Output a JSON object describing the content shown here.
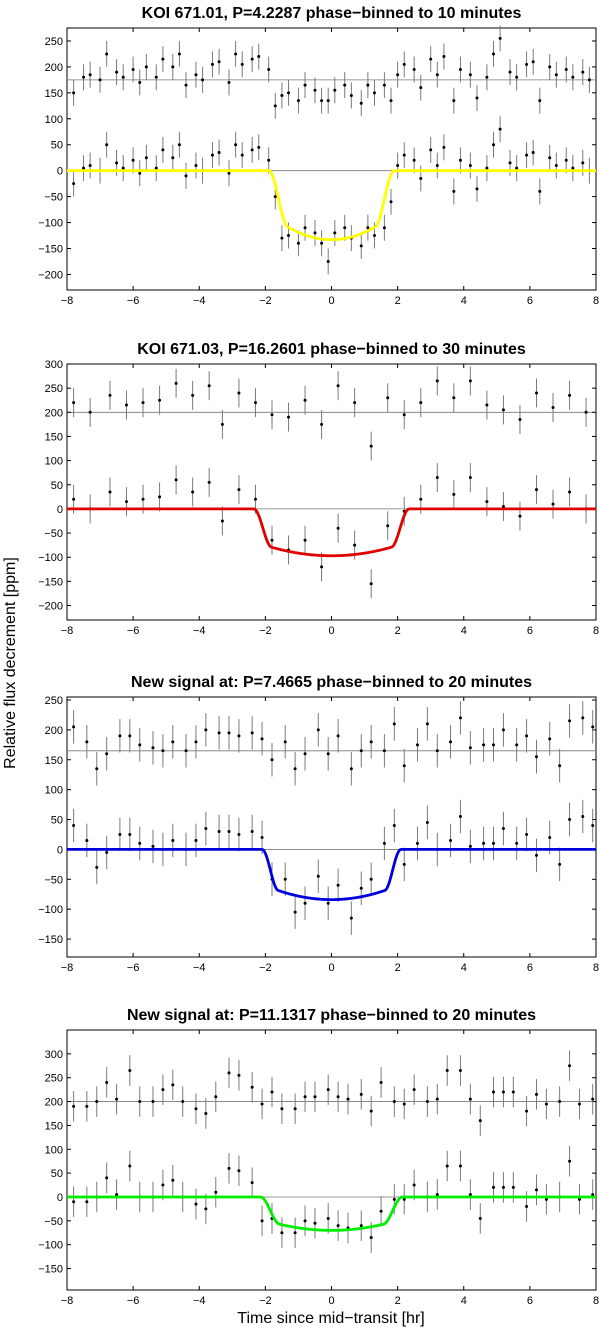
{
  "figure": {
    "ylabel": "Relative flux decrement [ppm]",
    "xlabel": "Time since mid−transit [hr]"
  },
  "chart_data": [
    {
      "type": "scatter",
      "title": "KOI 671.01, P=4.2287 phase−binned to 10 minutes",
      "xlim": [
        -8,
        8
      ],
      "ylim": [
        -230,
        275
      ],
      "xticks": [
        -8,
        -6,
        -4,
        -2,
        0,
        2,
        4,
        6,
        8
      ],
      "yticks": [
        -200,
        -150,
        -100,
        -50,
        0,
        50,
        100,
        150,
        200,
        250
      ],
      "model_color": "#ffff00",
      "baseline_offset": 175,
      "transit": {
        "depth": 133,
        "t_ingress_start": 1.9,
        "t_ingress_end": 1.3
      },
      "series": [
        {
          "role": "data",
          "x": [
            -7.8,
            -7.5,
            -7.3,
            -7.0,
            -6.8,
            -6.5,
            -6.3,
            -6.0,
            -5.8,
            -5.6,
            -5.3,
            -5.1,
            -4.8,
            -4.6,
            -4.4,
            -4.1,
            -3.9,
            -3.6,
            -3.4,
            -3.1,
            -2.9,
            -2.7,
            -2.4,
            -2.2,
            -1.9,
            -1.7,
            -1.5,
            -1.3,
            -1.0,
            -0.8,
            -0.5,
            -0.3,
            -0.1,
            0.1,
            0.4,
            0.6,
            0.9,
            1.1,
            1.3,
            1.6,
            1.8,
            2.0,
            2.2,
            2.5,
            2.7,
            3.0,
            3.2,
            3.4,
            3.7,
            3.9,
            4.2,
            4.4,
            4.7,
            4.9,
            5.1,
            5.4,
            5.6,
            5.9,
            6.1,
            6.3,
            6.6,
            6.8,
            7.1,
            7.3,
            7.6,
            7.8
          ],
          "y": [
            -25,
            5,
            10,
            0,
            50,
            15,
            5,
            20,
            -5,
            25,
            5,
            40,
            25,
            50,
            -10,
            10,
            0,
            30,
            35,
            -5,
            50,
            30,
            40,
            45,
            20,
            -50,
            -130,
            -125,
            -140,
            -110,
            -120,
            -140,
            -175,
            -120,
            -110,
            -130,
            -145,
            -110,
            -125,
            -110,
            -60,
            10,
            30,
            20,
            -15,
            40,
            10,
            45,
            -40,
            20,
            10,
            -35,
            5,
            50,
            80,
            15,
            5,
            30,
            35,
            -40,
            25,
            10,
            20,
            5,
            15,
            0
          ],
          "err": 25
        },
        {
          "role": "residual",
          "x": [
            -7.8,
            -7.5,
            -7.3,
            -7.0,
            -6.8,
            -6.5,
            -6.3,
            -6.0,
            -5.8,
            -5.6,
            -5.3,
            -5.1,
            -4.8,
            -4.6,
            -4.4,
            -4.1,
            -3.9,
            -3.6,
            -3.4,
            -3.1,
            -2.9,
            -2.7,
            -2.4,
            -2.2,
            -1.9,
            -1.7,
            -1.5,
            -1.3,
            -1.0,
            -0.8,
            -0.5,
            -0.3,
            -0.1,
            0.1,
            0.4,
            0.6,
            0.9,
            1.1,
            1.3,
            1.6,
            1.8,
            2.0,
            2.2,
            2.5,
            2.7,
            3.0,
            3.2,
            3.4,
            3.7,
            3.9,
            4.2,
            4.4,
            4.7,
            4.9,
            5.1,
            5.4,
            5.6,
            5.9,
            6.1,
            6.3,
            6.6,
            6.8,
            7.1,
            7.3,
            7.6,
            7.8
          ],
          "y": [
            150,
            180,
            185,
            175,
            225,
            190,
            180,
            195,
            170,
            200,
            180,
            215,
            200,
            225,
            165,
            185,
            175,
            205,
            210,
            170,
            225,
            205,
            215,
            220,
            195,
            125,
            145,
            150,
            135,
            165,
            155,
            135,
            135,
            155,
            165,
            145,
            130,
            165,
            150,
            165,
            135,
            185,
            205,
            195,
            160,
            215,
            185,
            220,
            135,
            195,
            185,
            140,
            180,
            225,
            255,
            190,
            180,
            205,
            210,
            135,
            200,
            185,
            195,
            180,
            190,
            175
          ],
          "err": 25
        }
      ]
    },
    {
      "type": "scatter",
      "title": "KOI 671.03, P=16.2601 phase−binned to 30 minutes",
      "xlim": [
        -8,
        8
      ],
      "ylim": [
        -230,
        300
      ],
      "xticks": [
        -8,
        -6,
        -4,
        -2,
        0,
        2,
        4,
        6,
        8
      ],
      "yticks": [
        -200,
        -150,
        -100,
        -50,
        0,
        50,
        100,
        150,
        200,
        250,
        300
      ],
      "model_color": "#e00000",
      "baseline_offset": 200,
      "transit": {
        "depth": 97,
        "t_ingress_start": 2.35,
        "t_ingress_end": 1.8
      },
      "series": [
        {
          "role": "data",
          "x": [
            -7.8,
            -7.3,
            -6.7,
            -6.2,
            -5.7,
            -5.2,
            -4.7,
            -4.2,
            -3.7,
            -3.3,
            -2.8,
            -2.3,
            -1.8,
            -1.3,
            -0.8,
            -0.3,
            0.2,
            0.7,
            1.2,
            1.7,
            2.2,
            2.7,
            3.2,
            3.7,
            4.2,
            4.7,
            5.2,
            5.7,
            6.2,
            6.7,
            7.2,
            7.7
          ],
          "y": [
            20,
            0,
            35,
            15,
            20,
            25,
            60,
            35,
            55,
            -25,
            40,
            20,
            -65,
            -85,
            -65,
            -120,
            -40,
            -75,
            -155,
            -35,
            -5,
            20,
            65,
            30,
            65,
            15,
            5,
            -15,
            40,
            10,
            35,
            0
          ],
          "err": 30
        },
        {
          "role": "residual",
          "x": [
            -7.8,
            -7.3,
            -6.7,
            -6.2,
            -5.7,
            -5.2,
            -4.7,
            -4.2,
            -3.7,
            -3.3,
            -2.8,
            -2.3,
            -1.8,
            -1.3,
            -0.8,
            -0.3,
            0.2,
            0.7,
            1.2,
            1.7,
            2.2,
            2.7,
            3.2,
            3.7,
            4.2,
            4.7,
            5.2,
            5.7,
            6.2,
            6.7,
            7.2,
            7.7
          ],
          "y": [
            220,
            200,
            235,
            215,
            220,
            225,
            260,
            235,
            255,
            175,
            240,
            220,
            195,
            190,
            225,
            175,
            255,
            220,
            130,
            230,
            195,
            220,
            265,
            230,
            265,
            215,
            205,
            185,
            240,
            210,
            235,
            200
          ],
          "err": 30
        }
      ]
    },
    {
      "type": "scatter",
      "title": "New signal at: P=7.4665 phase−binned to 20 minutes",
      "xlim": [
        -8,
        8
      ],
      "ylim": [
        -180,
        255
      ],
      "xticks": [
        -8,
        -6,
        -4,
        -2,
        0,
        2,
        4,
        6,
        8
      ],
      "yticks": [
        -150,
        -100,
        -50,
        0,
        50,
        100,
        150,
        200,
        250
      ],
      "model_color": "#0000dd",
      "baseline_offset": 165,
      "transit": {
        "depth": 84,
        "t_ingress_start": 2.1,
        "t_ingress_end": 1.6
      },
      "series": [
        {
          "role": "data",
          "x": [
            -7.8,
            -7.4,
            -7.1,
            -6.8,
            -6.4,
            -6.1,
            -5.8,
            -5.4,
            -5.1,
            -4.8,
            -4.4,
            -4.1,
            -3.8,
            -3.4,
            -3.1,
            -2.8,
            -2.4,
            -2.1,
            -1.8,
            -1.4,
            -1.1,
            -0.8,
            -0.4,
            -0.1,
            0.2,
            0.6,
            0.9,
            1.2,
            1.6,
            1.9,
            2.2,
            2.6,
            2.9,
            3.2,
            3.6,
            3.9,
            4.2,
            4.6,
            4.9,
            5.2,
            5.6,
            5.9,
            6.2,
            6.6,
            6.9,
            7.2,
            7.6,
            7.9
          ],
          "y": [
            40,
            15,
            -30,
            -5,
            25,
            25,
            10,
            5,
            0,
            15,
            0,
            15,
            35,
            30,
            30,
            25,
            30,
            20,
            -50,
            -50,
            -105,
            -90,
            -45,
            -90,
            -60,
            -115,
            -65,
            -50,
            10,
            40,
            -25,
            10,
            45,
            0,
            15,
            55,
            5,
            10,
            10,
            35,
            10,
            25,
            -10,
            20,
            -25,
            50,
            55,
            40
          ],
          "err": 28
        },
        {
          "role": "residual",
          "x": [
            -7.8,
            -7.4,
            -7.1,
            -6.8,
            -6.4,
            -6.1,
            -5.8,
            -5.4,
            -5.1,
            -4.8,
            -4.4,
            -4.1,
            -3.8,
            -3.4,
            -3.1,
            -2.8,
            -2.4,
            -2.1,
            -1.8,
            -1.4,
            -1.1,
            -0.8,
            -0.4,
            -0.1,
            0.2,
            0.6,
            0.9,
            1.2,
            1.6,
            1.9,
            2.2,
            2.6,
            2.9,
            3.2,
            3.6,
            3.9,
            4.2,
            4.6,
            4.9,
            5.2,
            5.6,
            5.9,
            6.2,
            6.6,
            6.9,
            7.2,
            7.6,
            7.9
          ],
          "y": [
            205,
            180,
            135,
            160,
            190,
            190,
            175,
            170,
            165,
            180,
            165,
            180,
            200,
            195,
            195,
            190,
            195,
            185,
            150,
            180,
            135,
            160,
            200,
            160,
            190,
            135,
            165,
            180,
            165,
            210,
            140,
            175,
            210,
            165,
            180,
            220,
            170,
            175,
            175,
            200,
            175,
            190,
            155,
            185,
            140,
            215,
            220,
            205
          ],
          "err": 28
        }
      ]
    },
    {
      "type": "scatter",
      "title": "New signal at: P=11.1317 phase−binned to 20 minutes",
      "xlim": [
        -8,
        8
      ],
      "ylim": [
        -195,
        350
      ],
      "xticks": [
        -8,
        -6,
        -4,
        -2,
        0,
        2,
        4,
        6,
        8
      ],
      "yticks": [
        -150,
        -100,
        -50,
        0,
        50,
        100,
        150,
        200,
        250,
        300
      ],
      "model_color": "#00ee00",
      "baseline_offset": 200,
      "transit": {
        "depth": 70,
        "t_ingress_start": 2.15,
        "t_ingress_end": 1.55
      },
      "series": [
        {
          "role": "data",
          "x": [
            -7.8,
            -7.4,
            -7.1,
            -6.8,
            -6.5,
            -6.1,
            -5.8,
            -5.4,
            -5.1,
            -4.8,
            -4.5,
            -4.1,
            -3.8,
            -3.5,
            -3.1,
            -2.8,
            -2.4,
            -2.1,
            -1.8,
            -1.5,
            -1.1,
            -0.8,
            -0.5,
            -0.1,
            0.2,
            0.5,
            0.9,
            1.2,
            1.5,
            1.9,
            2.2,
            2.5,
            2.9,
            3.2,
            3.5,
            3.9,
            4.2,
            4.5,
            4.9,
            5.2,
            5.5,
            5.9,
            6.2,
            6.5,
            6.9,
            7.2,
            7.5,
            7.9
          ],
          "y": [
            -10,
            -10,
            0,
            40,
            5,
            65,
            0,
            0,
            25,
            35,
            0,
            -15,
            -25,
            10,
            60,
            55,
            30,
            -50,
            -45,
            -75,
            -75,
            -50,
            -55,
            -45,
            -60,
            -65,
            -60,
            -85,
            -30,
            -5,
            -5,
            25,
            0,
            5,
            65,
            65,
            5,
            -45,
            20,
            20,
            20,
            -20,
            15,
            -5,
            0,
            75,
            -5,
            5
          ],
          "err": 32
        },
        {
          "role": "residual",
          "x": [
            -7.8,
            -7.4,
            -7.1,
            -6.8,
            -6.5,
            -6.1,
            -5.8,
            -5.4,
            -5.1,
            -4.8,
            -4.5,
            -4.1,
            -3.8,
            -3.5,
            -3.1,
            -2.8,
            -2.4,
            -2.1,
            -1.8,
            -1.5,
            -1.1,
            -0.8,
            -0.5,
            -0.1,
            0.2,
            0.5,
            0.9,
            1.2,
            1.5,
            1.9,
            2.2,
            2.5,
            2.9,
            3.2,
            3.5,
            3.9,
            4.2,
            4.5,
            4.9,
            5.2,
            5.5,
            5.9,
            6.2,
            6.5,
            6.9,
            7.2,
            7.5,
            7.9
          ],
          "y": [
            190,
            190,
            200,
            240,
            205,
            265,
            200,
            200,
            225,
            235,
            200,
            185,
            175,
            210,
            260,
            255,
            230,
            195,
            220,
            185,
            185,
            210,
            210,
            225,
            210,
            205,
            215,
            180,
            240,
            200,
            195,
            225,
            200,
            205,
            265,
            265,
            205,
            160,
            220,
            220,
            220,
            180,
            215,
            195,
            200,
            275,
            195,
            205
          ],
          "err": 32
        }
      ]
    }
  ]
}
